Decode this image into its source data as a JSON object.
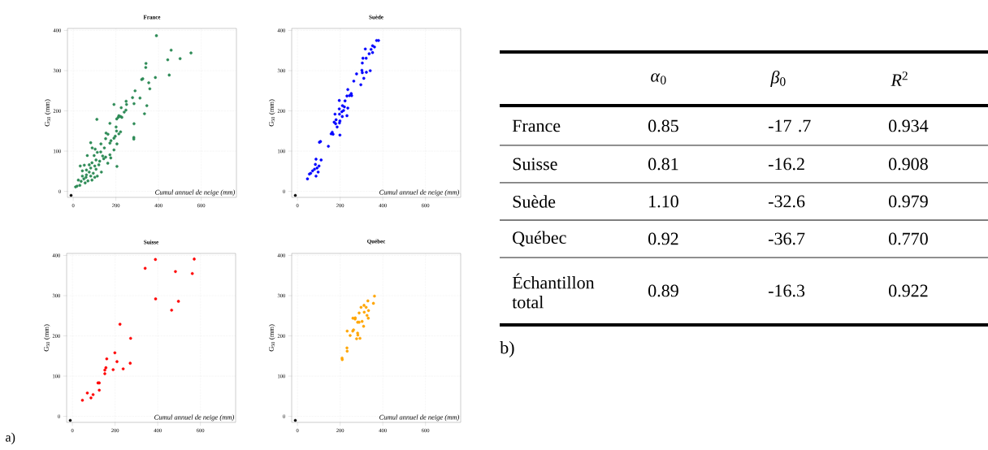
{
  "chart_data": [
    {
      "type": "scatter",
      "title": "France",
      "xlabel": "Cumul annuel de neige (mm)",
      "ylabel": "G$_{50}$ (mm)",
      "xlim": [
        -27,
        765
      ],
      "ylim": [
        -15,
        405
      ],
      "xticks": [
        0,
        200,
        400,
        600
      ],
      "yticks": [
        0,
        100,
        200,
        300,
        400
      ],
      "grid": true,
      "marker": "circle",
      "series": [
        {
          "color": "#2e8b57",
          "x": [
            390,
            459,
            552,
            443,
            501,
            450,
            385,
            341,
            340,
            326,
            321,
            354,
            359,
            290,
            278,
            313,
            285,
            248,
            250,
            247,
            239,
            345,
            334,
            225,
            191,
            222,
            211,
            228,
            214,
            204,
            285,
            172,
            201,
            203,
            222,
            214,
            197,
            154,
            163,
            152,
            191,
            284,
            284,
            177,
            172,
            205,
            191,
            111,
            82,
            89,
            146,
            172,
            176,
            162,
            205,
            129,
            113,
            138,
            152,
            66,
            98,
            107,
            132,
            33,
            52,
            43,
            62,
            82,
            101,
            120,
            124,
            88,
            75,
            62,
            82,
            94,
            107,
            113,
            50,
            69,
            37,
            24,
            18,
            31,
            56,
            88,
            101,
            75,
            60,
            43,
            11,
            143,
            130,
            103
          ],
          "values": [
            387,
            351,
            344,
            327,
            330,
            289,
            283,
            318,
            308,
            280,
            278,
            270,
            255,
            250,
            233,
            232,
            218,
            224,
            216,
            202,
            197,
            213,
            193,
            208,
            216,
            186,
            184,
            184,
            188,
            180,
            168,
            169,
            160,
            150,
            148,
            143,
            137,
            145,
            142,
            131,
            132,
            134,
            130,
            126,
            120,
            118,
            103,
            179,
            121,
            108,
            108,
            91,
            83,
            70,
            62,
            98,
            97,
            88,
            85,
            89,
            89,
            78,
            48,
            63,
            65,
            51,
            53,
            58,
            63,
            66,
            75,
            71,
            66,
            41,
            38,
            45,
            55,
            38,
            31,
            26,
            25,
            28,
            13,
            15,
            21,
            28,
            35,
            48,
            35,
            38,
            11,
            81,
            118,
            105
          ]
        },
        {
          "color": "#000000",
          "x": [
            -10
          ],
          "values": [
            -10
          ]
        }
      ]
    },
    {
      "type": "scatter",
      "title": "Suède",
      "xlabel": "Cumul annuel de neige (mm)",
      "ylabel": "G$_{50}$ (mm)",
      "xlim": [
        -27,
        765
      ],
      "ylim": [
        -15,
        405
      ],
      "xticks": [
        0,
        200,
        400,
        600
      ],
      "yticks": [
        0,
        100,
        200,
        300,
        400
      ],
      "grid": true,
      "marker": "circle",
      "series": [
        {
          "color": "#0000ff",
          "x": [
            380,
            371,
            361,
            352,
            345,
            352,
            336,
            318,
            307,
            322,
            304,
            341,
            323,
            302,
            304,
            277,
            311,
            264,
            297,
            236,
            252,
            244,
            232,
            254,
            196,
            223,
            211,
            220,
            236,
            196,
            208,
            216,
            176,
            197,
            232,
            210,
            172,
            181,
            199,
            179,
            197,
            186,
            163,
            158,
            167,
            199,
            108,
            103,
            145,
            111,
            87,
            84,
            101,
            92,
            80,
            71,
            62,
            56,
            87,
            47,
            97
          ],
          "values": [
            375,
            375,
            359,
            362,
            353,
            345,
            342,
            354,
            331,
            331,
            319,
            300,
            296,
            301,
            295,
            292,
            281,
            274,
            265,
            253,
            243,
            238,
            237,
            238,
            226,
            225,
            213,
            210,
            207,
            205,
            198,
            201,
            192,
            192,
            188,
            186,
            172,
            178,
            175,
            168,
            170,
            160,
            147,
            143,
            142,
            140,
            124,
            122,
            112,
            78,
            80,
            67,
            63,
            58,
            55,
            51,
            45,
            43,
            38,
            31,
            48
          ]
        },
        {
          "color": "#000000",
          "x": [
            -10
          ],
          "values": [
            -10
          ]
        }
      ]
    },
    {
      "type": "scatter",
      "title": "Suisse",
      "xlabel": "Cumul annuel de neige (mm)",
      "ylabel": "G$_{50}$ (mm)",
      "xlim": [
        -27,
        765
      ],
      "ylim": [
        -15,
        405
      ],
      "xticks": [
        0,
        200,
        400,
        600
      ],
      "yticks": [
        0,
        100,
        200,
        300,
        400
      ],
      "grid": true,
      "marker": "circle",
      "annotations": [
        "a)"
      ],
      "series": [
        {
          "color": "#ff0000",
          "x": [
            47,
            70,
            87,
            97,
            120,
            126,
            126,
            152,
            152,
            157,
            161,
            191,
            199,
            209,
            223,
            238,
            271,
            273,
            341,
            389,
            390,
            465,
            483,
            497,
            562,
            571
          ],
          "values": [
            40,
            58,
            46,
            54,
            83,
            83,
            65,
            106,
            115,
            121,
            143,
            116,
            158,
            136,
            229,
            118,
            132,
            194,
            368,
            390,
            292,
            264,
            360,
            286,
            355,
            391
          ]
        },
        {
          "color": "#000000",
          "x": [
            -10
          ],
          "values": [
            -10
          ]
        }
      ]
    },
    {
      "type": "scatter",
      "title": "Québec",
      "xlabel": "Cumul annuel de neige (mm)",
      "ylabel": "G$_{50}$ (mm)",
      "xlim": [
        -27,
        765
      ],
      "ylim": [
        -15,
        405
      ],
      "xticks": [
        0,
        200,
        400,
        600
      ],
      "yticks": [
        0,
        100,
        200,
        300,
        400
      ],
      "grid": true,
      "marker": "circle",
      "series": [
        {
          "color": "#ffa500",
          "x": [
            209,
            210,
            232,
            233,
            233,
            247,
            259,
            263,
            260,
            270,
            271,
            282,
            283,
            277,
            293,
            282,
            289,
            289,
            303,
            310,
            298,
            312,
            313,
            322,
            326,
            332,
            333,
            330,
            356,
            361
          ],
          "values": [
            145,
            141,
            170,
            162,
            212,
            201,
            212,
            215,
            244,
            242,
            245,
            207,
            202,
            193,
            194,
            234,
            234,
            257,
            236,
            224,
            271,
            276,
            259,
            271,
            251,
            244,
            263,
            287,
            281,
            299
          ]
        },
        {
          "color": "#000000",
          "x": [
            -10
          ],
          "values": [
            -10
          ]
        }
      ]
    },
    {
      "type": "other",
      "annotations": [
        "*α*$_{0}$",
        "*β*$_{0}$",
        "*R*$^{2}$",
        "France",
        "0.85",
        "-17 .7",
        "0.934",
        "Suisse",
        "0.81",
        "-16.2",
        "0.908",
        "Suède",
        "1.10",
        "-32.6",
        "0.979",
        "Québec",
        "0.92",
        "-36.7",
        "0.770",
        "Échantillon total",
        "0.89",
        "-16.3",
        "0.922",
        "b)"
      ]
    }
  ]
}
